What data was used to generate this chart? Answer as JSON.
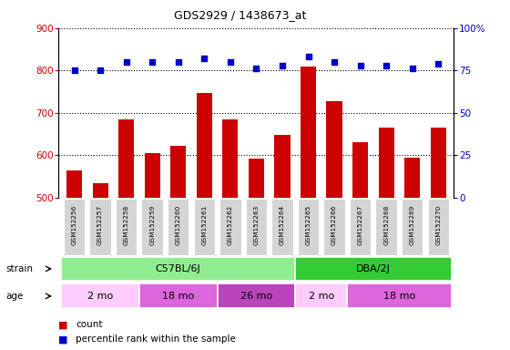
{
  "title": "GDS2929 / 1438673_at",
  "samples": [
    "GSM152256",
    "GSM152257",
    "GSM152258",
    "GSM152259",
    "GSM152260",
    "GSM152261",
    "GSM152262",
    "GSM152263",
    "GSM152264",
    "GSM152265",
    "GSM152266",
    "GSM152267",
    "GSM152268",
    "GSM152269",
    "GSM152270"
  ],
  "counts": [
    565,
    535,
    685,
    605,
    623,
    747,
    685,
    592,
    648,
    810,
    728,
    630,
    665,
    595,
    665
  ],
  "percentiles": [
    75,
    75,
    80,
    80,
    80,
    82,
    80,
    76,
    78,
    83,
    80,
    78,
    78,
    76,
    79
  ],
  "ylim_left": [
    500,
    900
  ],
  "ylim_right": [
    0,
    100
  ],
  "yticks_left": [
    500,
    600,
    700,
    800,
    900
  ],
  "yticks_right": [
    0,
    25,
    50,
    75,
    100
  ],
  "bar_color": "#cc0000",
  "dot_color": "#0000cc",
  "strain_groups": [
    {
      "label": "C57BL/6J",
      "start": 0,
      "end": 9,
      "color": "#90ee90"
    },
    {
      "label": "DBA/2J",
      "start": 9,
      "end": 15,
      "color": "#33cc33"
    }
  ],
  "age_groups": [
    {
      "label": "2 mo",
      "start": 0,
      "end": 3,
      "color": "#ffccff"
    },
    {
      "label": "18 mo",
      "start": 3,
      "end": 6,
      "color": "#dd66dd"
    },
    {
      "label": "26 mo",
      "start": 6,
      "end": 9,
      "color": "#bb44bb"
    },
    {
      "label": "2 mo",
      "start": 9,
      "end": 11,
      "color": "#ffccff"
    },
    {
      "label": "18 mo",
      "start": 11,
      "end": 15,
      "color": "#dd66dd"
    }
  ],
  "strain_label": "strain",
  "age_label": "age",
  "legend_count": "count",
  "legend_pct": "percentile rank within the sample",
  "tick_label_color_left": "#cc0000",
  "tick_label_color_right": "#0000cc",
  "xticklabel_bg": "#cccccc"
}
